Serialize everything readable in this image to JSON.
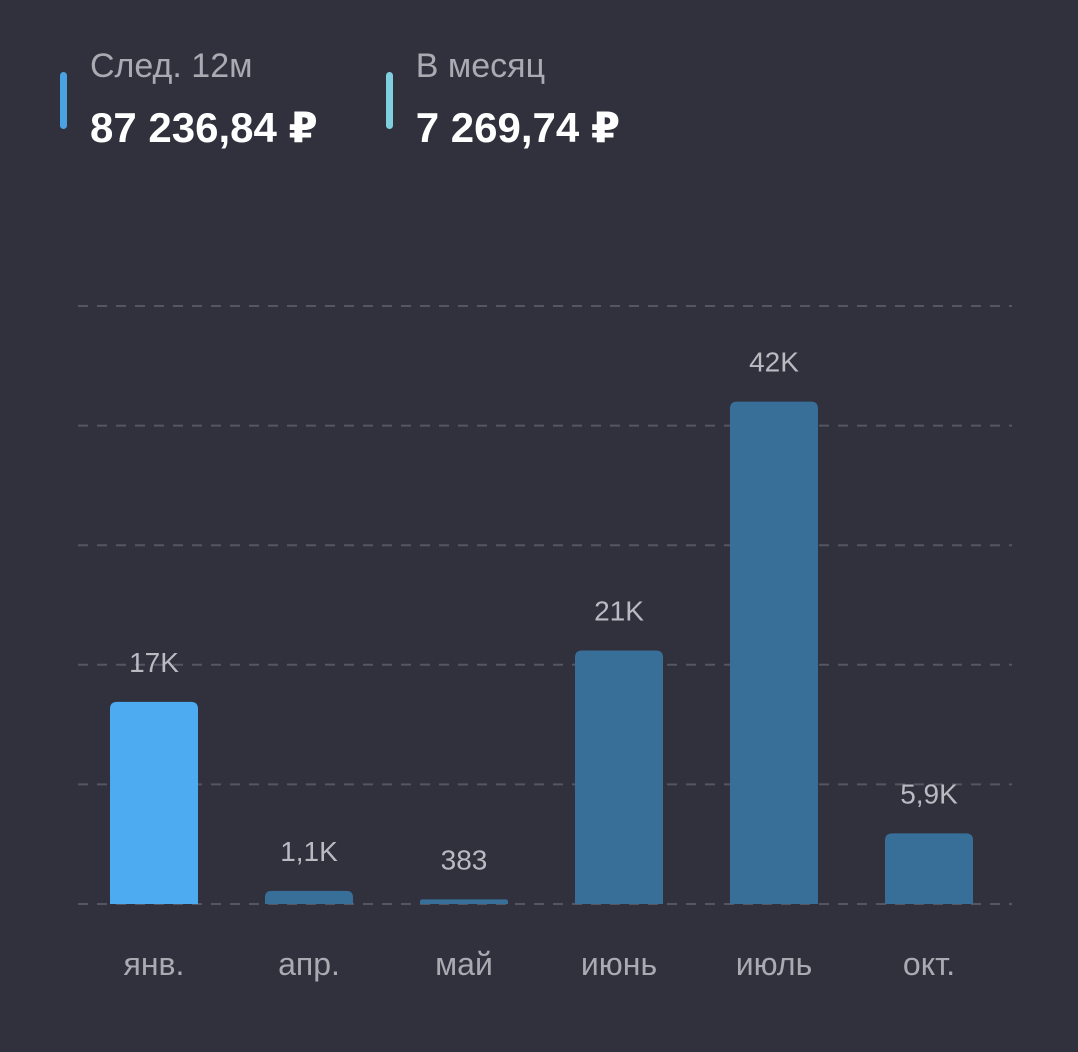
{
  "summary": {
    "next12": {
      "label": "След. 12м",
      "value": "87 236,84 ₽",
      "color": "#4aa3e0"
    },
    "monthly": {
      "label": "В месяц",
      "value": "7 269,74 ₽",
      "color": "#7fcfe0"
    }
  },
  "colors": {
    "background": "#30313c",
    "bar_highlight": "#4dacf1",
    "bar_default": "#386f99",
    "grid": "#545664",
    "value_label": "#b9bbc3",
    "category_label": "#a9abb3"
  },
  "chart_data": {
    "type": "bar",
    "title": "",
    "xlabel": "",
    "ylabel": "",
    "categories": [
      "янв.",
      "апр.",
      "май",
      "июнь",
      "июль",
      "окт."
    ],
    "values": [
      16900,
      1100,
      383,
      21200,
      42000,
      5900
    ],
    "value_labels": [
      "17K",
      "1,1K",
      "383",
      "21K",
      "42K",
      "5,9K"
    ],
    "highlighted_index": 0,
    "ylim": [
      0,
      50000
    ],
    "grid_step": 10000,
    "grid": true,
    "legend": "none"
  }
}
